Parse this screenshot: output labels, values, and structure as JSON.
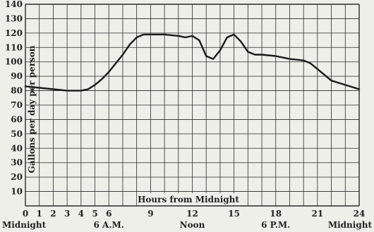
{
  "chart_data": {
    "type": "line",
    "ylabel": "Gallons per day per person",
    "annotation": "Hours from Midnight",
    "xlim": [
      0,
      24
    ],
    "ylim": [
      0,
      140
    ],
    "y_ticks": [
      "10",
      "20",
      "30",
      "40",
      "50",
      "60",
      "70",
      "80",
      "90",
      "100",
      "110",
      "120",
      "130",
      "140"
    ],
    "x_tick_labels": [
      {
        "x": 0,
        "text": "0"
      },
      {
        "x": 1,
        "text": "1"
      },
      {
        "x": 2,
        "text": "2"
      },
      {
        "x": 3,
        "text": "3"
      },
      {
        "x": 4,
        "text": "4"
      },
      {
        "x": 5,
        "text": "5"
      },
      {
        "x": 6,
        "text": "6"
      },
      {
        "x": 9,
        "text": "9"
      },
      {
        "x": 12,
        "text": "12"
      },
      {
        "x": 15,
        "text": "15"
      },
      {
        "x": 18,
        "text": "18"
      },
      {
        "x": 21,
        "text": "21"
      },
      {
        "x": 24,
        "text": "24"
      }
    ],
    "time_labels": [
      {
        "x": 0,
        "text": "Midnight"
      },
      {
        "x": 6,
        "text": "6 A.M."
      },
      {
        "x": 12,
        "text": "Noon"
      },
      {
        "x": 18,
        "text": "6 P.M."
      },
      {
        "x": 24,
        "text": "Midnight"
      }
    ],
    "grid": true,
    "series": [
      {
        "x": [
          0,
          1,
          2,
          3,
          4,
          4.5,
          5,
          5.5,
          6,
          6.5,
          7,
          7.5,
          8,
          8.5,
          9,
          10,
          11,
          11.5,
          12,
          12.5,
          13,
          13.5,
          14,
          14.5,
          15,
          15.5,
          16,
          16.5,
          17,
          18,
          19,
          20,
          20.5,
          21,
          21.5,
          22,
          23,
          24
        ],
        "y": [
          83,
          82,
          81,
          80,
          80,
          81,
          84,
          88,
          93,
          99,
          105,
          112,
          117,
          119,
          119,
          119,
          118,
          117,
          118,
          115,
          104,
          102,
          108,
          117,
          119,
          114,
          107,
          105,
          105,
          104,
          102,
          101,
          99,
          95,
          91,
          87,
          84,
          81
        ],
        "color": "#1a1a1a"
      }
    ]
  }
}
